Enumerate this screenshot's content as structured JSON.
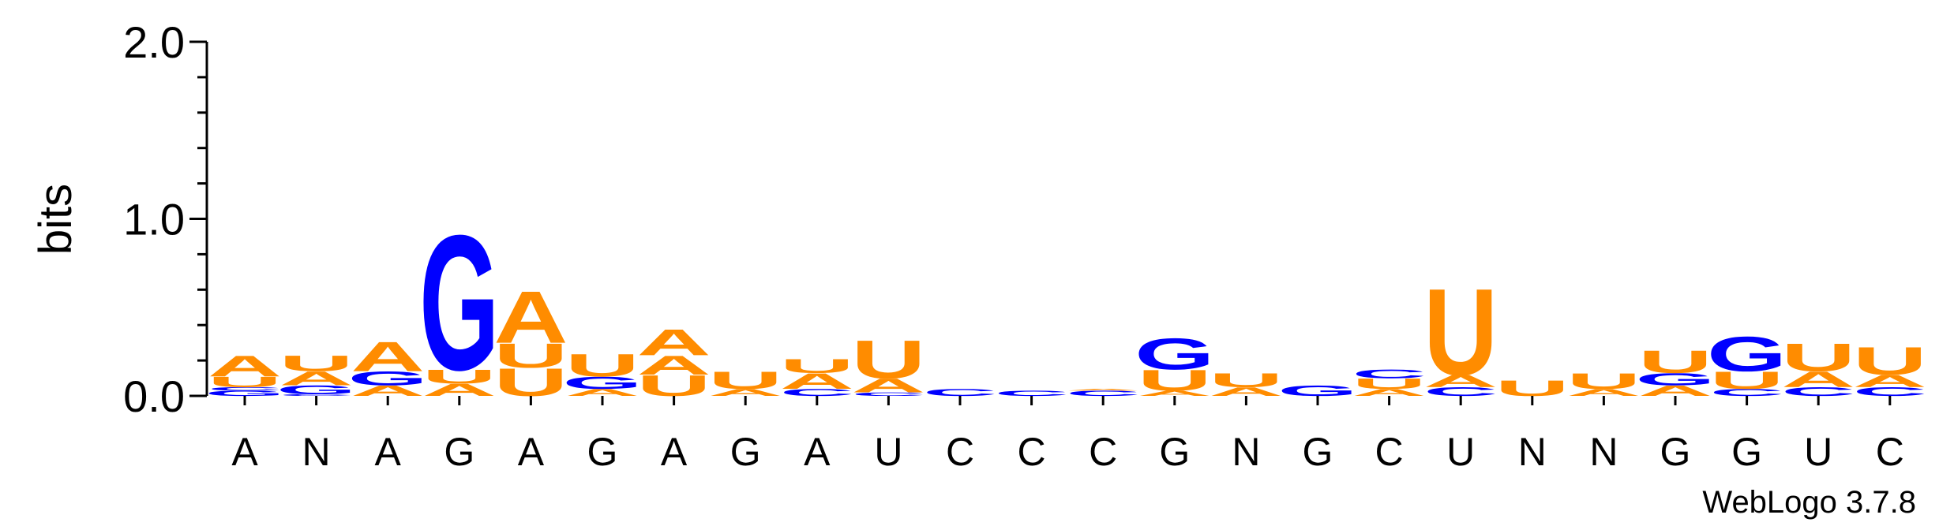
{
  "chart_data": {
    "type": "sequence-logo",
    "ylabel": "bits",
    "ylim": [
      0,
      2.0
    ],
    "yticks": [
      {
        "value": 0.0,
        "label": "0.0"
      },
      {
        "value": 1.0,
        "label": "1.0"
      },
      {
        "value": 2.0,
        "label": "2.0"
      }
    ],
    "positions": [
      "A",
      "N",
      "A",
      "G",
      "A",
      "G",
      "A",
      "G",
      "A",
      "U",
      "C",
      "C",
      "C",
      "G",
      "N",
      "G",
      "C",
      "U",
      "N",
      "N",
      "G",
      "G",
      "U",
      "C"
    ],
    "stacks": [
      [
        [
          "G",
          0.03
        ],
        [
          "C",
          0.02
        ],
        [
          "U",
          0.06
        ],
        [
          "A",
          0.12
        ]
      ],
      [
        [
          "C",
          0.01
        ],
        [
          "G",
          0.05
        ],
        [
          "A",
          0.08
        ],
        [
          "U",
          0.09
        ]
      ],
      [
        [
          "A",
          0.06
        ],
        [
          "G",
          0.08
        ],
        [
          "A",
          0.17
        ]
      ],
      [
        [
          "A",
          0.07
        ],
        [
          "U",
          0.08
        ],
        [
          "G",
          0.78
        ]
      ],
      [
        [
          "U",
          0.16
        ],
        [
          "U",
          0.14
        ],
        [
          "A",
          0.3
        ]
      ],
      [
        [
          "A",
          0.04
        ],
        [
          "G",
          0.07
        ],
        [
          "U",
          0.13
        ]
      ],
      [
        [
          "U",
          0.12
        ],
        [
          "A",
          0.11
        ],
        [
          "A",
          0.15
        ]
      ],
      [
        [
          "A",
          0.04
        ],
        [
          "U",
          0.1
        ]
      ],
      [
        [
          "C",
          0.04
        ],
        [
          "A",
          0.09
        ],
        [
          "U",
          0.08
        ]
      ],
      [
        [
          "C",
          0.02
        ],
        [
          "A",
          0.08
        ],
        [
          "U",
          0.22
        ]
      ],
      [
        [
          "C",
          0.04
        ]
      ],
      [
        [
          "C",
          0.03
        ]
      ],
      [
        [
          "C",
          0.03
        ],
        [
          "A",
          0.01
        ]
      ],
      [
        [
          "A",
          0.03
        ],
        [
          "U",
          0.12
        ],
        [
          "G",
          0.18
        ]
      ],
      [
        [
          "A",
          0.05
        ],
        [
          "U",
          0.08
        ]
      ],
      [
        [
          "G",
          0.06
        ]
      ],
      [
        [
          "A",
          0.04
        ],
        [
          "U",
          0.06
        ],
        [
          "C",
          0.05
        ]
      ],
      [
        [
          "C",
          0.05
        ],
        [
          "A",
          0.07
        ],
        [
          "U",
          0.5
        ]
      ],
      [
        [
          "U",
          0.09
        ]
      ],
      [
        [
          "A",
          0.04
        ],
        [
          "U",
          0.09
        ]
      ],
      [
        [
          "A",
          0.06
        ],
        [
          "G",
          0.07
        ],
        [
          "U",
          0.13
        ]
      ],
      [
        [
          "C",
          0.04
        ],
        [
          "U",
          0.1
        ],
        [
          "G",
          0.2
        ]
      ],
      [
        [
          "C",
          0.05
        ],
        [
          "A",
          0.09
        ],
        [
          "U",
          0.16
        ]
      ],
      [
        [
          "C",
          0.05
        ],
        [
          "A",
          0.07
        ],
        [
          "U",
          0.16
        ]
      ]
    ],
    "colors": {
      "A": "#ff8c00",
      "U": "#ff8c00",
      "G": "#0000ff",
      "C": "#0000ff"
    }
  },
  "footer": {
    "credit": "WebLogo 3.7.8"
  }
}
